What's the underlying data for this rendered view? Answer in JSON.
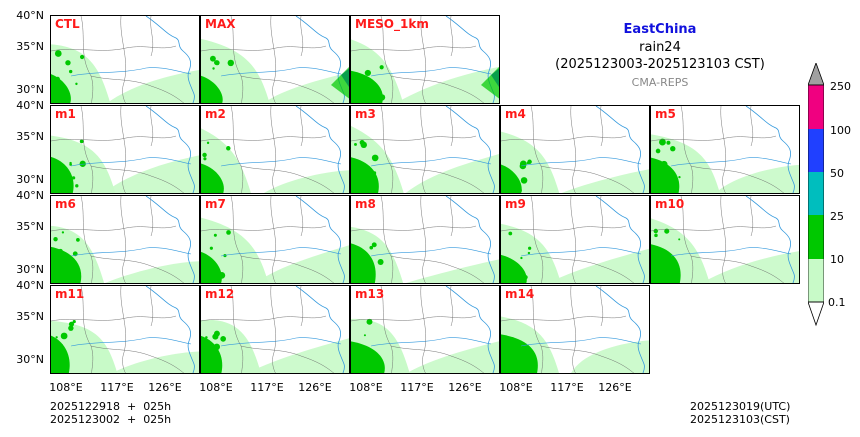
{
  "header": {
    "region": "EastChina",
    "variable": "rain24",
    "period": "(2025123003-2025123103 CST)",
    "system": "CMA-REPS",
    "region_color": "#1111dd",
    "system_color": "#888888"
  },
  "panels": [
    {
      "label": "CTL"
    },
    {
      "label": "MAX"
    },
    {
      "label": "MESO_1km"
    },
    {
      "label": "m1"
    },
    {
      "label": "m2"
    },
    {
      "label": "m3"
    },
    {
      "label": "m4"
    },
    {
      "label": "m5"
    },
    {
      "label": "m6"
    },
    {
      "label": "m7"
    },
    {
      "label": "m8"
    },
    {
      "label": "m9"
    },
    {
      "label": "m10"
    },
    {
      "label": "m11"
    },
    {
      "label": "m12"
    },
    {
      "label": "m13"
    },
    {
      "label": "m14"
    }
  ],
  "axes": {
    "lat_labels": [
      "40°N",
      "35°N",
      "30°N"
    ],
    "lon_labels": [
      "108°E",
      "117°E",
      "126°E"
    ]
  },
  "colorbar": {
    "levels": [
      "0.1",
      "10",
      "25",
      "50",
      "100",
      "250"
    ],
    "colors": [
      "#c8fac8",
      "#00c800",
      "#00bebe",
      "#2040ff",
      "#f00080"
    ],
    "under_color": "#ffffff",
    "over_color": "#a0a0a0"
  },
  "footer": {
    "init_utc": "2025122918  +  025h",
    "init_cst": "2025123002  +  025h",
    "valid_utc": "2025123019(UTC)",
    "valid_cst": "2025123103(CST)"
  }
}
